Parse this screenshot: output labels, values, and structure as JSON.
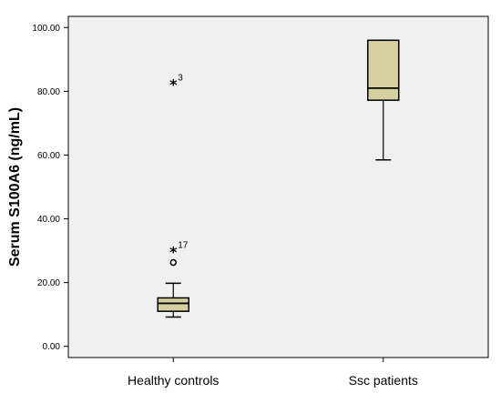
{
  "chart_data": {
    "type": "box",
    "ylabel": "Serum S100A6 (ng/mL)",
    "xlabel": "",
    "ylim": [
      -3.5,
      103.5
    ],
    "yticks": [
      0,
      20,
      40,
      60,
      80,
      100
    ],
    "ytick_labels": [
      "0.00",
      "20.00",
      "40.00",
      "60.00",
      "80.00",
      "100.00"
    ],
    "grid": false,
    "categories": [
      "Healthy controls",
      "Ssc patients"
    ],
    "boxes": [
      {
        "name": "Healthy controls",
        "min": 9.2,
        "q1": 11.0,
        "median": 13.5,
        "q3": 15.2,
        "max": 19.8,
        "outliers": [
          {
            "value": 26.3,
            "marker": "circle",
            "label": ""
          },
          {
            "value": 29.8,
            "marker": "star",
            "label": "17"
          },
          {
            "value": 82.3,
            "marker": "star",
            "label": "3"
          }
        ]
      },
      {
        "name": "Ssc patients",
        "min": 58.5,
        "q1": 77.2,
        "median": 81.0,
        "q3": 96.0,
        "max": 96.0,
        "outliers": []
      }
    ],
    "colors": {
      "plot_background": "#f0f0f0",
      "box_fill": "#d6d0a0",
      "stroke": "#000000"
    }
  }
}
